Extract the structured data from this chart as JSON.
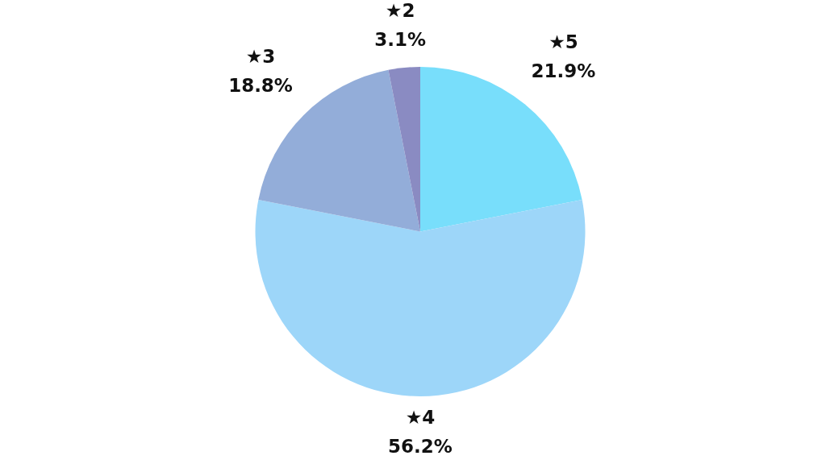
{
  "chart_data": {
    "type": "pie",
    "categories": [
      "★5",
      "★4",
      "★3",
      "★2"
    ],
    "values": [
      21.9,
      56.2,
      18.8,
      3.1
    ],
    "value_labels": [
      "21.9%",
      "56.2%",
      "18.8%",
      "3.1%"
    ],
    "colors": [
      "#78defb",
      "#9dd6f9",
      "#93add9",
      "#8a8bc2"
    ]
  }
}
